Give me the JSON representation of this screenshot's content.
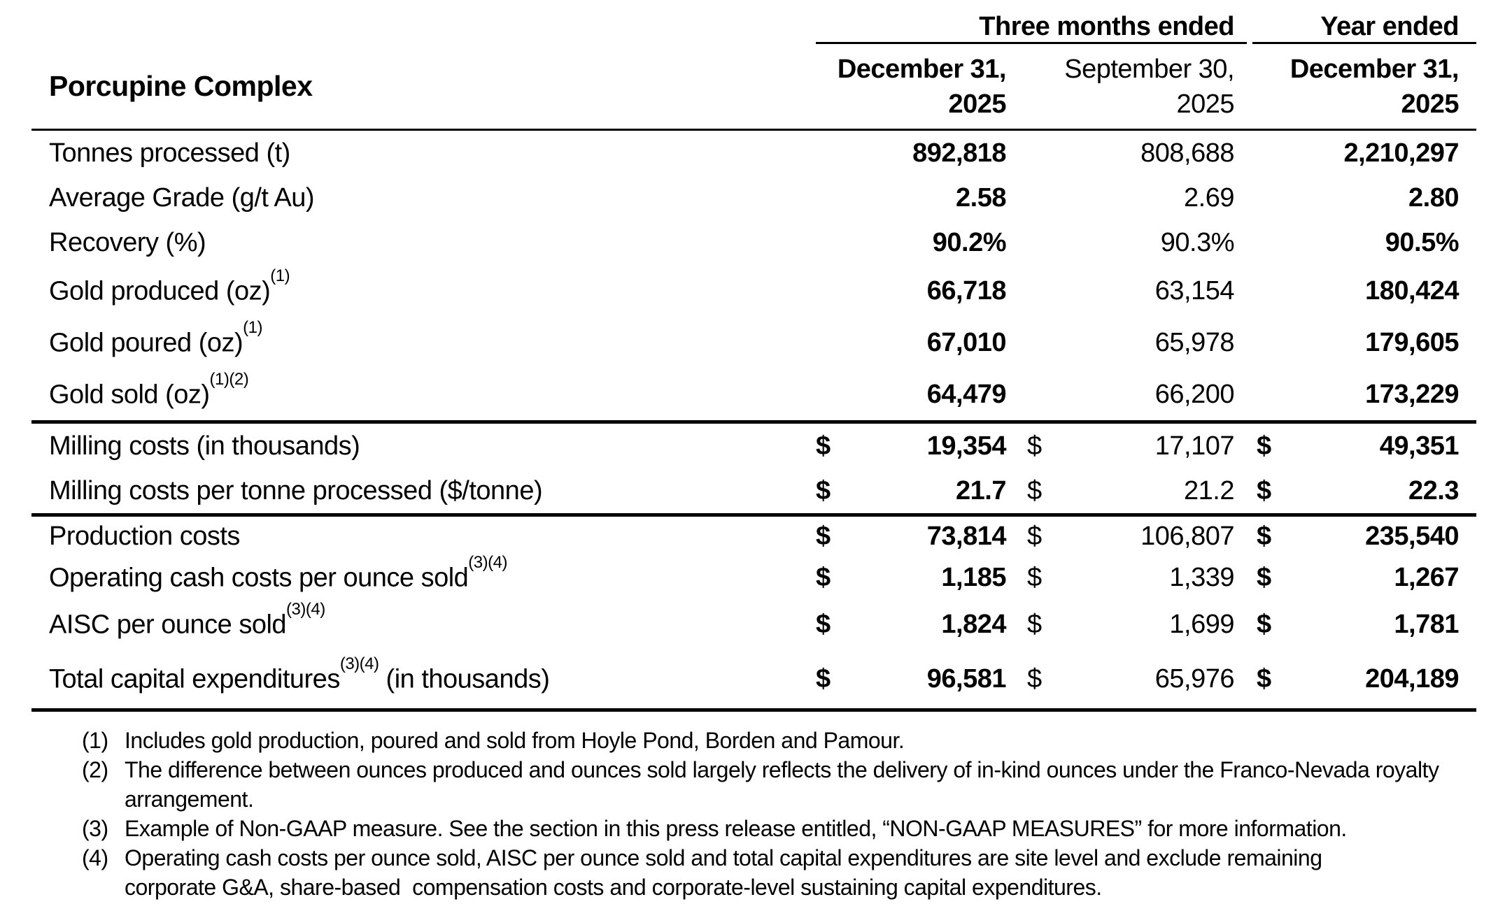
{
  "table": {
    "title": "Porcupine Complex",
    "header": {
      "three_months_label": "Three months ended",
      "year_label": "Year ended",
      "columns": [
        {
          "month": "December 31,",
          "year": "2025"
        },
        {
          "month": "September 30,",
          "year": "2025"
        },
        {
          "month": "December 31,",
          "year": "2025"
        }
      ]
    },
    "currency_symbol": "$",
    "rows": [
      {
        "label": "Tonnes processed (t)",
        "values": [
          "892,818",
          "808,688",
          "2,210,297"
        ]
      },
      {
        "label": "Average Grade (g/t Au)",
        "values": [
          "2.58",
          "2.69",
          "2.80"
        ]
      },
      {
        "label": "Recovery (%)",
        "values": [
          "90.2%",
          "90.3%",
          "90.5%"
        ]
      },
      {
        "label": "Gold produced (oz)",
        "sup": "(1)",
        "values": [
          "66,718",
          "63,154",
          "180,424"
        ]
      },
      {
        "label": "Gold poured (oz)",
        "sup": "(1)",
        "values": [
          "67,010",
          "65,978",
          "179,605"
        ]
      },
      {
        "label": "Gold sold (oz)",
        "sup": "(1)(2)",
        "values": [
          "64,479",
          "66,200",
          "173,229"
        ]
      },
      {
        "label": "Milling costs (in thousands)",
        "dollar": true,
        "values": [
          "19,354",
          "17,107",
          "49,351"
        ]
      },
      {
        "label": "Milling costs per tonne processed ($/tonne)",
        "dollar": true,
        "values": [
          "21.7",
          "21.2",
          "22.3"
        ]
      },
      {
        "label": "Production costs",
        "dollar": true,
        "values": [
          "73,814",
          "106,807",
          "235,540"
        ]
      },
      {
        "label": "Operating cash costs per ounce sold",
        "sup": "(3)(4)",
        "dollar": true,
        "values": [
          "1,185",
          "1,339",
          "1,267"
        ]
      },
      {
        "label": "AISC per ounce sold",
        "sup": "(3)(4)",
        "dollar": true,
        "values": [
          "1,824",
          "1,699",
          "1,781"
        ]
      },
      {
        "label": "Total capital expenditures",
        "sup": "(3)(4)",
        "label_suffix": " (in thousands)",
        "dollar": true,
        "values": [
          "96,581",
          "65,976",
          "204,189"
        ]
      }
    ]
  },
  "footnotes": [
    {
      "marker": "(1)",
      "lines": [
        "Includes gold production, poured and sold from Hoyle Pond, Borden and Pamour."
      ]
    },
    {
      "marker": "(2)",
      "lines": [
        "The difference between ounces produced and ounces sold largely reflects the delivery of in-kind ounces under the Franco-Nevada royalty",
        "arrangement."
      ]
    },
    {
      "marker": "(3)",
      "lines": [
        "Example of Non-GAAP measure. See the section in this press release entitled, “NON-GAAP MEASURES” for more information."
      ]
    },
    {
      "marker": "(4)",
      "lines": [
        "Operating cash costs per ounce sold, AISC per ounce sold and total capital expenditures are site level and exclude remaining",
        "corporate G&A, share-based  compensation costs and corporate-level sustaining capital expenditures."
      ]
    }
  ]
}
